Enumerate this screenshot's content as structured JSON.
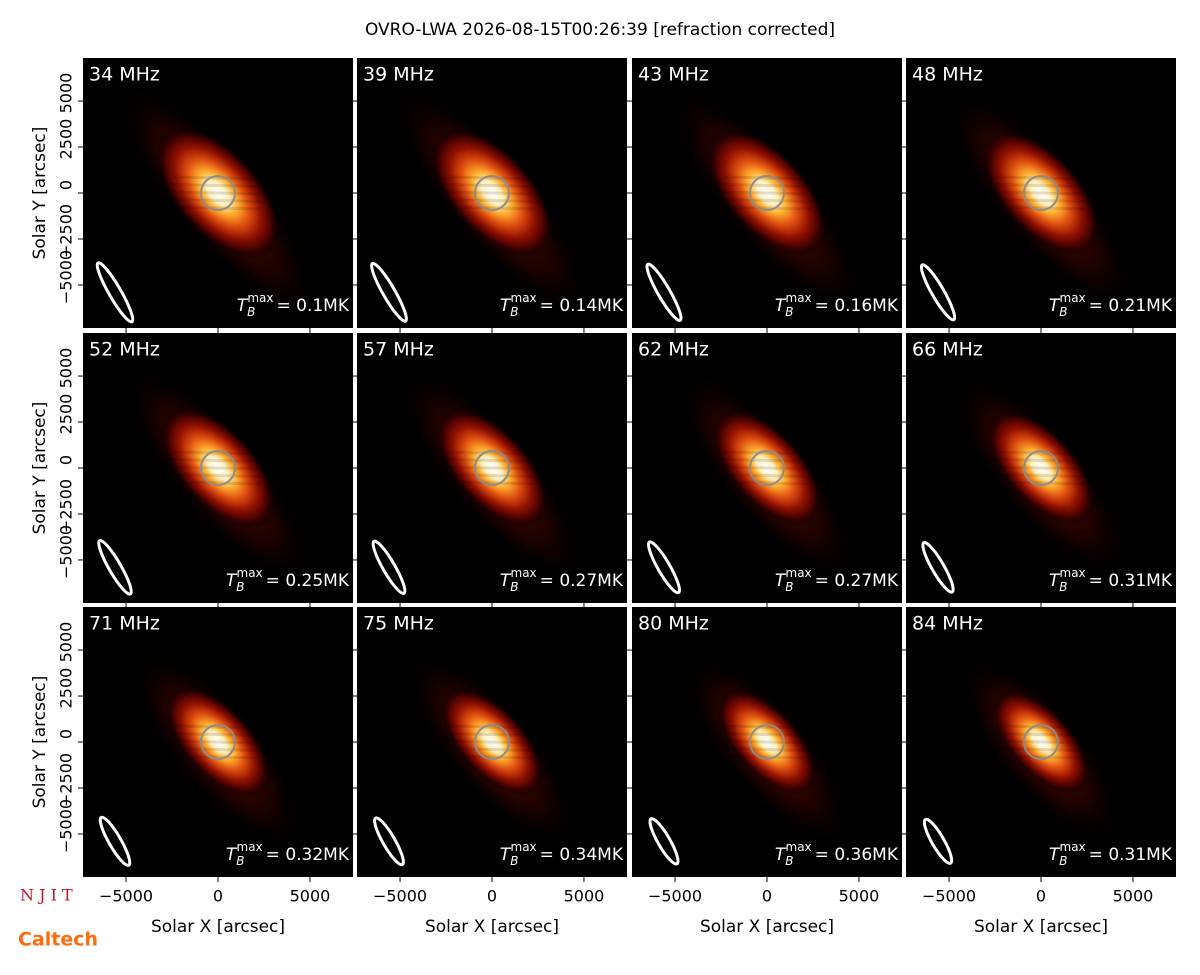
{
  "chart_data": {
    "type": "image-grid",
    "title": "OVRO-LWA 2026-08-15T00:26:39 [refraction corrected]",
    "xlabel": "Solar X [arcsec]",
    "ylabel": "Solar Y [arcsec]",
    "xlim": [
      -7340,
      7340
    ],
    "ylim": [
      -7340,
      7340
    ],
    "xticks": [
      {
        "value": -5000,
        "label": "−5000"
      },
      0,
      5000
    ],
    "yticks": [
      {
        "value": -5000,
        "label": "−5000"
      },
      {
        "value": -2500,
        "label": "−2500"
      },
      0,
      2500,
      5000
    ],
    "tb_symbol": "T",
    "tb_sub": "B",
    "tb_sup": "max",
    "tb_eq": "= ",
    "panels": [
      {
        "freq": "34 MHz",
        "tb": "0.1MK"
      },
      {
        "freq": "39 MHz",
        "tb": "0.14MK"
      },
      {
        "freq": "43 MHz",
        "tb": "0.16MK"
      },
      {
        "freq": "48 MHz",
        "tb": "0.21MK"
      },
      {
        "freq": "52 MHz",
        "tb": "0.25MK"
      },
      {
        "freq": "57 MHz",
        "tb": "0.27MK"
      },
      {
        "freq": "62 MHz",
        "tb": "0.27MK"
      },
      {
        "freq": "66 MHz",
        "tb": "0.31MK"
      },
      {
        "freq": "71 MHz",
        "tb": "0.32MK"
      },
      {
        "freq": "75 MHz",
        "tb": "0.34MK"
      },
      {
        "freq": "80 MHz",
        "tb": "0.36MK"
      },
      {
        "freq": "84 MHz",
        "tb": "0.31MK"
      }
    ],
    "logos": [
      "N J I T",
      "Caltech"
    ]
  }
}
